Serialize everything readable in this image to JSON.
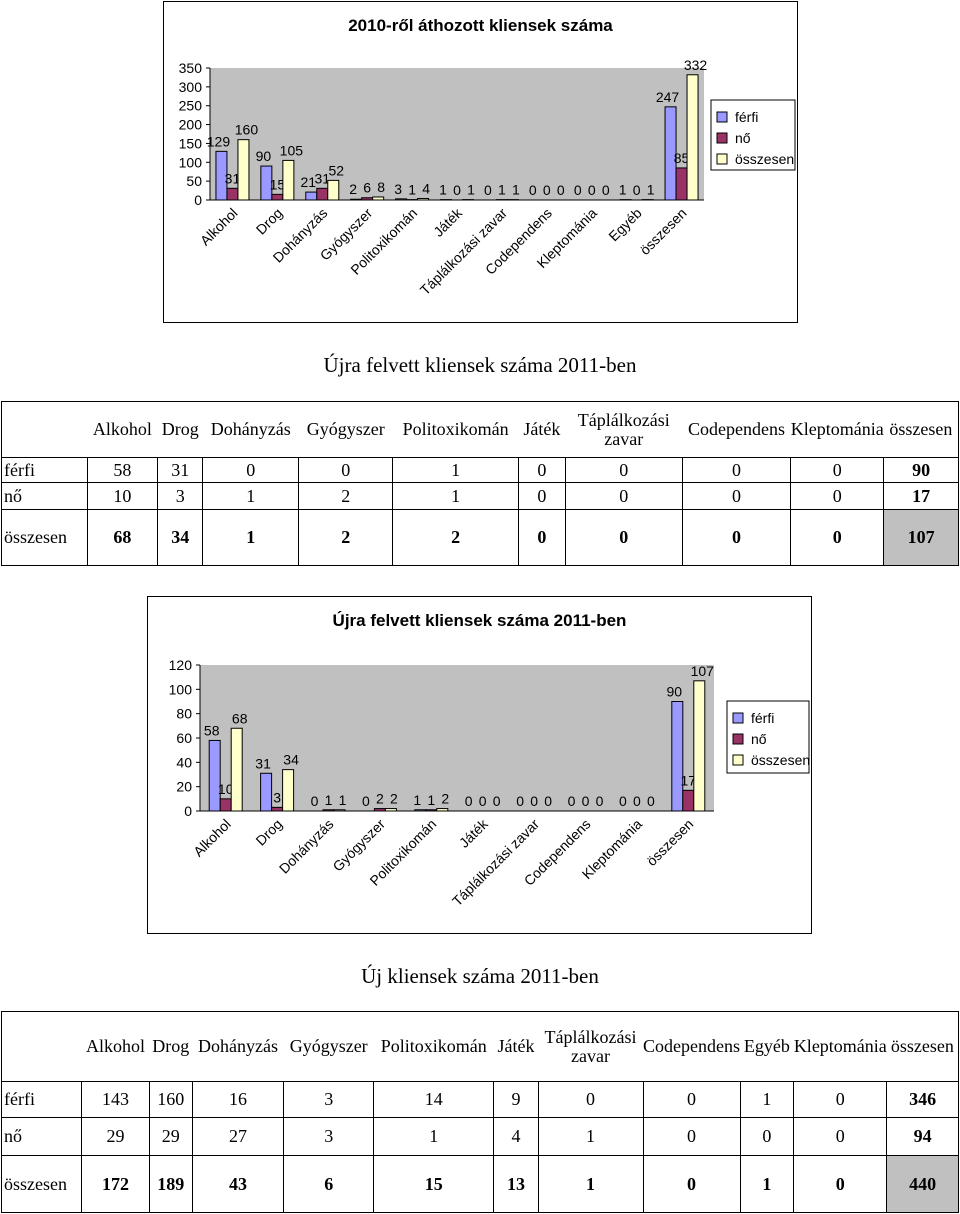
{
  "chart_data": [
    {
      "type": "bar",
      "title": "2010-ről áthozott kliensek száma",
      "categories": [
        "Alkohol",
        "Drog",
        "Dohányzás",
        "Gyógyszer",
        "Politoxikomán",
        "Játék",
        "Táplálkozási zavar",
        "Codependens",
        "Kleptománia",
        "Egyéb",
        "összesen"
      ],
      "series": [
        {
          "name": "férfi",
          "values": [
            129,
            90,
            21,
            2,
            3,
            1,
            0,
            0,
            0,
            1,
            247
          ]
        },
        {
          "name": "nő",
          "values": [
            31,
            15,
            31,
            6,
            1,
            0,
            1,
            0,
            0,
            0,
            85
          ]
        },
        {
          "name": "összesen",
          "values": [
            160,
            105,
            52,
            8,
            4,
            1,
            1,
            0,
            0,
            1,
            332
          ]
        }
      ],
      "ylim": [
        0,
        350
      ],
      "yticks": [
        0,
        50,
        100,
        150,
        200,
        250,
        300,
        350
      ],
      "legend": "right",
      "colors": [
        "#9999ff",
        "#993366",
        "#ffffcc"
      ],
      "grid": false
    },
    {
      "type": "bar",
      "title": "Újra felvett kliensek száma 2011-ben",
      "categories": [
        "Alkohol",
        "Drog",
        "Dohányzás",
        "Gyógyszer",
        "Politoxikomán",
        "Játék",
        "Táplálkozási zavar",
        "Codependens",
        "Kleptománia",
        "összesen"
      ],
      "series": [
        {
          "name": "férfi",
          "values": [
            58,
            31,
            0,
            0,
            1,
            0,
            0,
            0,
            0,
            90
          ]
        },
        {
          "name": "nő",
          "values": [
            10,
            3,
            1,
            2,
            1,
            0,
            0,
            0,
            0,
            17
          ]
        },
        {
          "name": "összesen",
          "values": [
            68,
            34,
            1,
            2,
            2,
            0,
            0,
            0,
            0,
            107
          ]
        }
      ],
      "ylim": [
        0,
        120
      ],
      "yticks": [
        0,
        20,
        40,
        60,
        80,
        100,
        120
      ],
      "legend": "right",
      "colors": [
        "#9999ff",
        "#993366",
        "#ffffcc"
      ],
      "grid": false
    }
  ],
  "section2_title": "Újra felvett kliensek száma 2011-ben",
  "table2": {
    "headers": [
      "Alkohol",
      "Drog",
      "Dohányzás",
      "Gyógyszer",
      "Politoxikomán",
      "Játék",
      "Táplálkozási zavar",
      "Codependens",
      "Kleptománia",
      "összesen"
    ],
    "rows": [
      {
        "label": "férfi",
        "values": [
          "58",
          "31",
          "0",
          "0",
          "1",
          "0",
          "0",
          "0",
          "0",
          "90"
        ]
      },
      {
        "label": "nő",
        "values": [
          "10",
          "3",
          "1",
          "2",
          "1",
          "0",
          "0",
          "0",
          "0",
          "17"
        ]
      },
      {
        "label": "összesen",
        "values": [
          "68",
          "34",
          "1",
          "2",
          "2",
          "0",
          "0",
          "0",
          "0",
          "107"
        ]
      }
    ]
  },
  "section3_title": "Új kliensek száma 2011-ben",
  "table3": {
    "headers": [
      "Alkohol",
      "Drog",
      "Dohányzás",
      "Gyógyszer",
      "Politoxikomán",
      "Játék",
      "Táplálkozási zavar",
      "Codependens",
      "Egyéb",
      "Kleptománia",
      "összesen"
    ],
    "rows": [
      {
        "label": "férfi",
        "values": [
          "143",
          "160",
          "16",
          "3",
          "14",
          "9",
          "0",
          "0",
          "1",
          "0",
          "346"
        ]
      },
      {
        "label": "nő",
        "values": [
          "29",
          "29",
          "27",
          "3",
          "1",
          "4",
          "1",
          "0",
          "0",
          "0",
          "94"
        ]
      },
      {
        "label": "összesen",
        "values": [
          "172",
          "189",
          "43",
          "6",
          "15",
          "13",
          "1",
          "0",
          "1",
          "0",
          "440"
        ]
      }
    ]
  }
}
